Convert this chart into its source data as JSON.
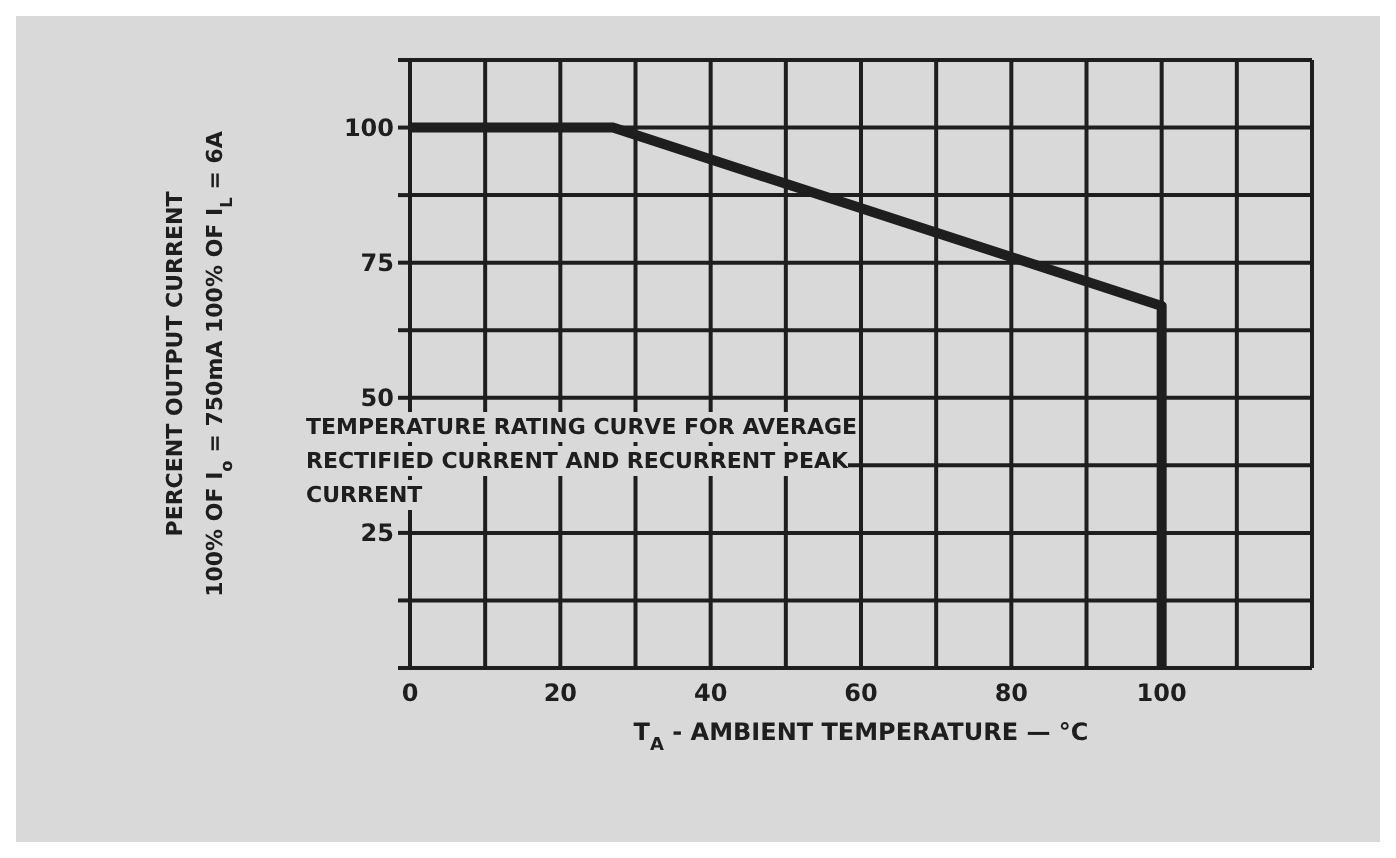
{
  "chart_data": {
    "type": "line",
    "xlabel": "T$_{A}$ - AMBIENT TEMPERATURE — °C",
    "ylabel": "PERCENT OUTPUT CURRENT\n100% OF I$_{o}$ = 750mA   100% OF I$_{L}$ = 6A",
    "annotations": [
      "TEMPERATURE RATING CURVE FOR AVERAGE RECTIFIED CURRENT AND RECURRENT PEAK CURRENT"
    ],
    "series": [
      {
        "color": "#1e1e1e",
        "x": [
          0,
          27,
          100,
          100
        ],
        "values": [
          100,
          100,
          67,
          0
        ]
      }
    ],
    "xlim": [
      0,
      120
    ],
    "xticks": [
      0,
      {
        "value": 10,
        "label": null
      },
      20,
      {
        "value": 30,
        "label": null
      },
      40,
      {
        "value": 50,
        "label": null
      },
      60,
      {
        "value": 70,
        "label": null
      },
      80,
      {
        "value": 90,
        "label": null
      },
      100,
      {
        "value": 110,
        "label": null
      },
      {
        "value": 120,
        "label": null
      }
    ],
    "ylim": [
      0,
      112.5
    ],
    "yticks": [
      {
        "value": 0,
        "label": null
      },
      {
        "value": 12.5,
        "label": null
      },
      25,
      {
        "value": 37.5,
        "label": null
      },
      50,
      {
        "value": 62.5,
        "label": null
      },
      75,
      {
        "value": 87.5,
        "label": null
      },
      100,
      {
        "value": 112.5,
        "label": null
      }
    ],
    "grid": true
  }
}
